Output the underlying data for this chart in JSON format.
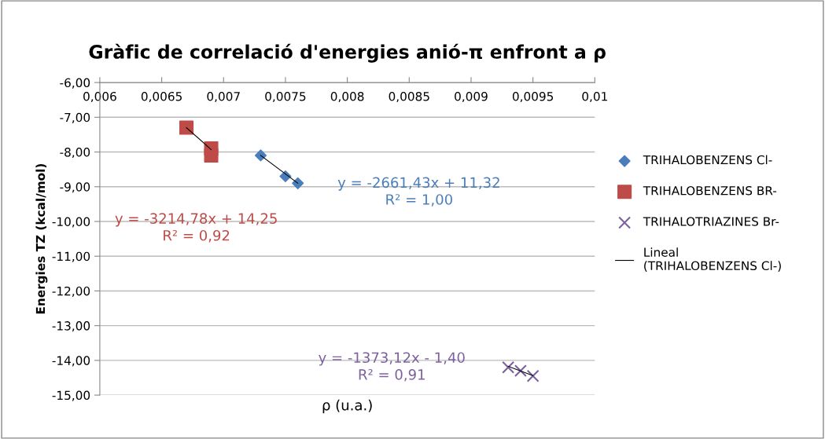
{
  "chart_data": {
    "type": "scatter",
    "title": "Gràfic de correlació d'energies anió-π enfront a ρ",
    "xlabel": "ρ (u.a.)",
    "ylabel": "Energies TZ (kcal/mol)",
    "xlim": [
      0.006,
      0.01
    ],
    "ylim": [
      -15,
      -6
    ],
    "xticks": [
      {
        "value": 0.006,
        "label": "0,006"
      },
      {
        "value": 0.0065,
        "label": "0,0065"
      },
      {
        "value": 0.007,
        "label": "0,007"
      },
      {
        "value": 0.0075,
        "label": "0,0075"
      },
      {
        "value": 0.008,
        "label": "0,008"
      },
      {
        "value": 0.0085,
        "label": "0,0085"
      },
      {
        "value": 0.009,
        "label": "0,009"
      },
      {
        "value": 0.0095,
        "label": "0,0095"
      },
      {
        "value": 0.01,
        "label": "0,01"
      }
    ],
    "yticks": [
      {
        "value": -6,
        "label": "-6,00"
      },
      {
        "value": -7,
        "label": "-7,00"
      },
      {
        "value": -8,
        "label": "-8,00"
      },
      {
        "value": -9,
        "label": "-9,00"
      },
      {
        "value": -10,
        "label": "-10,00"
      },
      {
        "value": -11,
        "label": "-11,00"
      },
      {
        "value": -12,
        "label": "-12,00"
      },
      {
        "value": -13,
        "label": "-13,00"
      },
      {
        "value": -14,
        "label": "-14,00"
      },
      {
        "value": -15,
        "label": "-15,00"
      }
    ],
    "grid": "y",
    "legend": "right",
    "series": [
      {
        "name": "TRIHALOBENZENS Cl-",
        "color": "#4a7ebb",
        "marker": "diamond",
        "x": [
          0.0073,
          0.0075,
          0.0076
        ],
        "values": [
          -8.1,
          -8.7,
          -8.9
        ]
      },
      {
        "name": "TRIHALOBENZENS BR-",
        "color": "#be4b48",
        "marker": "square",
        "x": [
          0.0067,
          0.0069,
          0.0069
        ],
        "values": [
          -7.3,
          -7.9,
          -8.1
        ]
      },
      {
        "name": "TRIHALOTRIAZINES Br-",
        "color": "#7d60a0",
        "marker": "cross",
        "x": [
          0.0093,
          0.0094,
          0.0095
        ],
        "values": [
          -14.2,
          -14.3,
          -14.45
        ]
      },
      {
        "name": "Lineal\n(TRIHALOBENZENS Cl-)",
        "type": "line",
        "color": "#000000",
        "x": [
          0.0073,
          0.0076
        ],
        "values": [
          -8.1,
          -8.9
        ]
      },
      {
        "type": "line",
        "color": "#000000",
        "x": [
          0.0067,
          0.0069
        ],
        "values": [
          -7.3,
          -7.93
        ]
      },
      {
        "type": "line",
        "color": "#000000",
        "x": [
          0.0093,
          0.0095
        ],
        "values": [
          -14.17,
          -14.44
        ]
      }
    ],
    "annotations": [
      "y = -2661,43x + 11,32\nR² = 1,00",
      "y = -3214,78x + 14,25\nR² = 0,92",
      "y = -1373,12x - 1,40\nR² = 0,91"
    ]
  }
}
